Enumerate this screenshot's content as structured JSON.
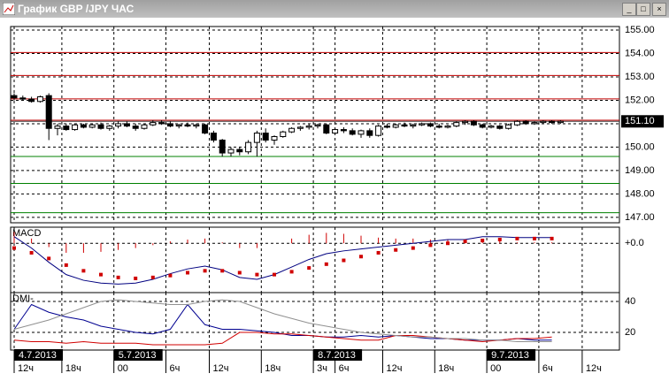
{
  "window": {
    "title": "График GBP /JPY ЧАС"
  },
  "chart_data": [
    {
      "type": "candlestick",
      "ylim": [
        146.77,
        155.15
      ],
      "yticks": [
        {
          "value": 155,
          "label": "155.00"
        },
        {
          "value": 154,
          "label": "154.00"
        },
        {
          "value": 153,
          "label": "153.00"
        },
        {
          "value": 152,
          "label": "152.00"
        },
        {
          "value": 151,
          "label": "151.00"
        },
        {
          "value": 150,
          "label": "150.00"
        },
        {
          "value": 149,
          "label": "149.00"
        },
        {
          "value": 148,
          "label": "148.00"
        },
        {
          "value": 147,
          "label": "147.00"
        }
      ],
      "grid": true,
      "last_price": {
        "value": 151.1,
        "label": "151.10"
      },
      "levels": [
        {
          "value": 154.04,
          "color": "#c00000"
        },
        {
          "value": 153.06,
          "color": "#c00000"
        },
        {
          "value": 152.06,
          "color": "#c00000"
        },
        {
          "value": 151.15,
          "color": "#c00000"
        },
        {
          "value": 149.6,
          "color": "#008000"
        },
        {
          "value": 148.45,
          "color": "#008000"
        },
        {
          "value": 147.2,
          "color": "#008000"
        }
      ],
      "xticks": [
        {
          "value": 0,
          "label": "12ч"
        },
        {
          "value": 5.5,
          "label": "18ч"
        },
        {
          "value": 11.5,
          "label": "00"
        },
        {
          "value": 17.5,
          "label": "6ч"
        },
        {
          "value": 22.5,
          "label": "12ч"
        },
        {
          "value": 28.5,
          "label": "18ч"
        },
        {
          "value": 34.5,
          "label": "3ч"
        },
        {
          "value": 37,
          "label": "6ч"
        },
        {
          "value": 42.5,
          "label": "12ч"
        },
        {
          "value": 48.5,
          "label": "18ч"
        },
        {
          "value": 54.5,
          "label": "00"
        },
        {
          "value": 60.5,
          "label": "6ч"
        },
        {
          "value": 65.5,
          "label": "12ч"
        }
      ],
      "date_labels": [
        {
          "value": 0,
          "label": "4.7.2013"
        },
        {
          "value": 11.5,
          "label": "5.7.2013"
        },
        {
          "value": 34.5,
          "label": "8.7.2013"
        },
        {
          "value": 54.5,
          "label": "9.7.2013"
        }
      ],
      "ohlc": [
        [
          152.2,
          152.3,
          152.0,
          152.1
        ],
        [
          152.1,
          152.2,
          152.0,
          152.05
        ],
        [
          152.05,
          152.15,
          151.9,
          151.95
        ],
        [
          151.95,
          152.2,
          151.9,
          152.15
        ],
        [
          152.2,
          152.3,
          150.3,
          150.8
        ],
        [
          150.8,
          151.0,
          150.5,
          150.9
        ],
        [
          150.9,
          151.0,
          150.7,
          150.75
        ],
        [
          150.75,
          151.0,
          150.7,
          150.95
        ],
        [
          150.95,
          151.0,
          150.8,
          150.85
        ],
        [
          150.85,
          151.0,
          150.8,
          150.95
        ],
        [
          150.95,
          151.05,
          150.75,
          150.8
        ],
        [
          150.8,
          150.95,
          150.7,
          150.9
        ],
        [
          150.9,
          151.1,
          150.8,
          151.0
        ],
        [
          151.0,
          151.1,
          150.85,
          150.9
        ],
        [
          150.9,
          151.0,
          150.7,
          150.8
        ],
        [
          150.8,
          151.0,
          150.75,
          150.95
        ],
        [
          150.95,
          151.15,
          150.9,
          151.05
        ],
        [
          151.05,
          151.15,
          150.95,
          151.0
        ],
        [
          151.0,
          151.1,
          150.85,
          150.9
        ],
        [
          150.9,
          151.0,
          150.8,
          150.95
        ],
        [
          150.95,
          151.05,
          150.85,
          150.9
        ],
        [
          150.9,
          151.0,
          150.8,
          150.95
        ],
        [
          150.95,
          151.0,
          150.55,
          150.6
        ],
        [
          150.6,
          150.7,
          150.2,
          150.3
        ],
        [
          150.3,
          150.35,
          149.6,
          149.75
        ],
        [
          149.75,
          150.0,
          149.6,
          149.9
        ],
        [
          149.9,
          150.0,
          149.65,
          149.8
        ],
        [
          149.8,
          150.3,
          149.7,
          150.2
        ],
        [
          150.2,
          150.7,
          149.6,
          150.6
        ],
        [
          150.6,
          150.8,
          150.2,
          150.3
        ],
        [
          150.3,
          150.5,
          150.1,
          150.45
        ],
        [
          150.45,
          150.7,
          150.4,
          150.65
        ],
        [
          150.65,
          150.85,
          150.6,
          150.8
        ],
        [
          150.8,
          150.9,
          150.7,
          150.85
        ],
        [
          150.85,
          151.0,
          150.75,
          150.9
        ],
        [
          150.9,
          151.0,
          150.8,
          150.95
        ],
        [
          150.95,
          151.0,
          150.55,
          150.6
        ],
        [
          150.6,
          150.8,
          150.55,
          150.75
        ],
        [
          150.75,
          150.85,
          150.6,
          150.7
        ],
        [
          150.7,
          150.8,
          150.5,
          150.55
        ],
        [
          150.55,
          150.75,
          150.4,
          150.7
        ],
        [
          150.7,
          150.8,
          150.4,
          150.5
        ],
        [
          150.5,
          150.95,
          150.45,
          150.9
        ],
        [
          150.9,
          151.0,
          150.8,
          150.85
        ],
        [
          150.85,
          151.0,
          150.8,
          150.95
        ],
        [
          150.95,
          151.05,
          150.85,
          150.9
        ],
        [
          150.9,
          151.0,
          150.8,
          150.95
        ],
        [
          150.95,
          151.05,
          150.9,
          151.0
        ],
        [
          151.0,
          151.05,
          150.85,
          150.9
        ],
        [
          150.9,
          151.0,
          150.8,
          150.85
        ],
        [
          150.85,
          150.95,
          150.8,
          150.9
        ],
        [
          150.9,
          151.1,
          150.85,
          151.05
        ],
        [
          151.05,
          151.15,
          150.95,
          151.1
        ],
        [
          151.1,
          151.15,
          150.9,
          150.95
        ],
        [
          150.95,
          151.0,
          150.8,
          150.85
        ],
        [
          150.85,
          150.95,
          150.8,
          150.9
        ],
        [
          150.9,
          150.95,
          150.75,
          150.8
        ],
        [
          150.8,
          151.0,
          150.75,
          150.95
        ],
        [
          150.95,
          151.15,
          150.9,
          151.1
        ],
        [
          151.1,
          151.15,
          150.95,
          151.0
        ],
        [
          151.0,
          151.1,
          150.95,
          151.05
        ],
        [
          151.05,
          151.15,
          151.0,
          151.1
        ],
        [
          151.1,
          151.15,
          151.0,
          151.05
        ],
        [
          151.05,
          151.15,
          151.0,
          151.1
        ]
      ]
    },
    {
      "type": "combo",
      "title": "MACD",
      "ylim": [
        -0.52,
        0.17
      ],
      "yticks": [
        {
          "value": 0,
          "label": "+0.0"
        }
      ],
      "series": [
        {
          "style": "histogram",
          "color": "#d00000",
          "values": [
            0.12,
            0.05,
            -0.04,
            -0.1,
            -0.1,
            -0.09,
            -0.07,
            -0.05,
            -0.02,
            0.02,
            0.04,
            0.05,
            0.01,
            -0.05,
            -0.05,
            0.0,
            0.05,
            0.09,
            0.11,
            0.1,
            0.08,
            0.06,
            0.05,
            0.05,
            0.04,
            0.04,
            0.02,
            0.04,
            0.03,
            0.01,
            0.01,
            0.01
          ]
        },
        {
          "style": "line",
          "color": "#000080",
          "values": [
            0.07,
            -0.05,
            -0.2,
            -0.33,
            -0.39,
            -0.42,
            -0.43,
            -0.42,
            -0.38,
            -0.32,
            -0.27,
            -0.24,
            -0.28,
            -0.36,
            -0.38,
            -0.33,
            -0.25,
            -0.17,
            -0.11,
            -0.08,
            -0.06,
            -0.04,
            -0.02,
            0.0,
            0.02,
            0.04,
            0.04,
            0.07,
            0.07,
            0.06,
            0.06,
            0.06
          ]
        },
        {
          "style": "dots",
          "color": "#d00000",
          "values": [
            -0.05,
            -0.1,
            -0.16,
            -0.23,
            -0.29,
            -0.33,
            -0.36,
            -0.37,
            -0.36,
            -0.34,
            -0.31,
            -0.29,
            -0.29,
            -0.31,
            -0.33,
            -0.33,
            -0.3,
            -0.26,
            -0.22,
            -0.18,
            -0.14,
            -0.1,
            -0.07,
            -0.05,
            -0.02,
            0.0,
            0.02,
            0.03,
            0.04,
            0.05,
            0.05,
            0.05
          ]
        }
      ]
    },
    {
      "type": "line",
      "title": "DMI-",
      "ylim": [
        8.6,
        45.7
      ],
      "yticks": [
        40,
        20
      ],
      "series": [
        {
          "color": "#000090",
          "values": [
            22,
            38,
            33,
            30,
            28,
            24,
            22,
            20,
            19,
            22,
            38,
            25,
            22,
            22,
            21,
            20,
            18,
            18,
            17,
            17,
            18,
            17,
            18,
            17,
            16,
            16,
            15,
            15,
            15,
            16,
            15,
            15
          ]
        },
        {
          "color": "#d00000",
          "values": [
            15,
            14,
            14,
            13,
            14,
            13,
            13,
            13,
            12,
            12,
            12,
            12,
            13,
            20,
            20,
            19,
            19,
            18,
            17,
            16,
            15,
            15,
            18,
            18,
            17,
            16,
            15,
            14,
            15,
            16,
            16,
            17
          ]
        },
        {
          "color": "#909090",
          "values": [
            22,
            25,
            28,
            32,
            36,
            40,
            41,
            40,
            39,
            38,
            38,
            40,
            41,
            40,
            36,
            32,
            29,
            26,
            24,
            22,
            20,
            19,
            18,
            17,
            17,
            16,
            16,
            15,
            15,
            14,
            14,
            14
          ]
        }
      ]
    }
  ]
}
